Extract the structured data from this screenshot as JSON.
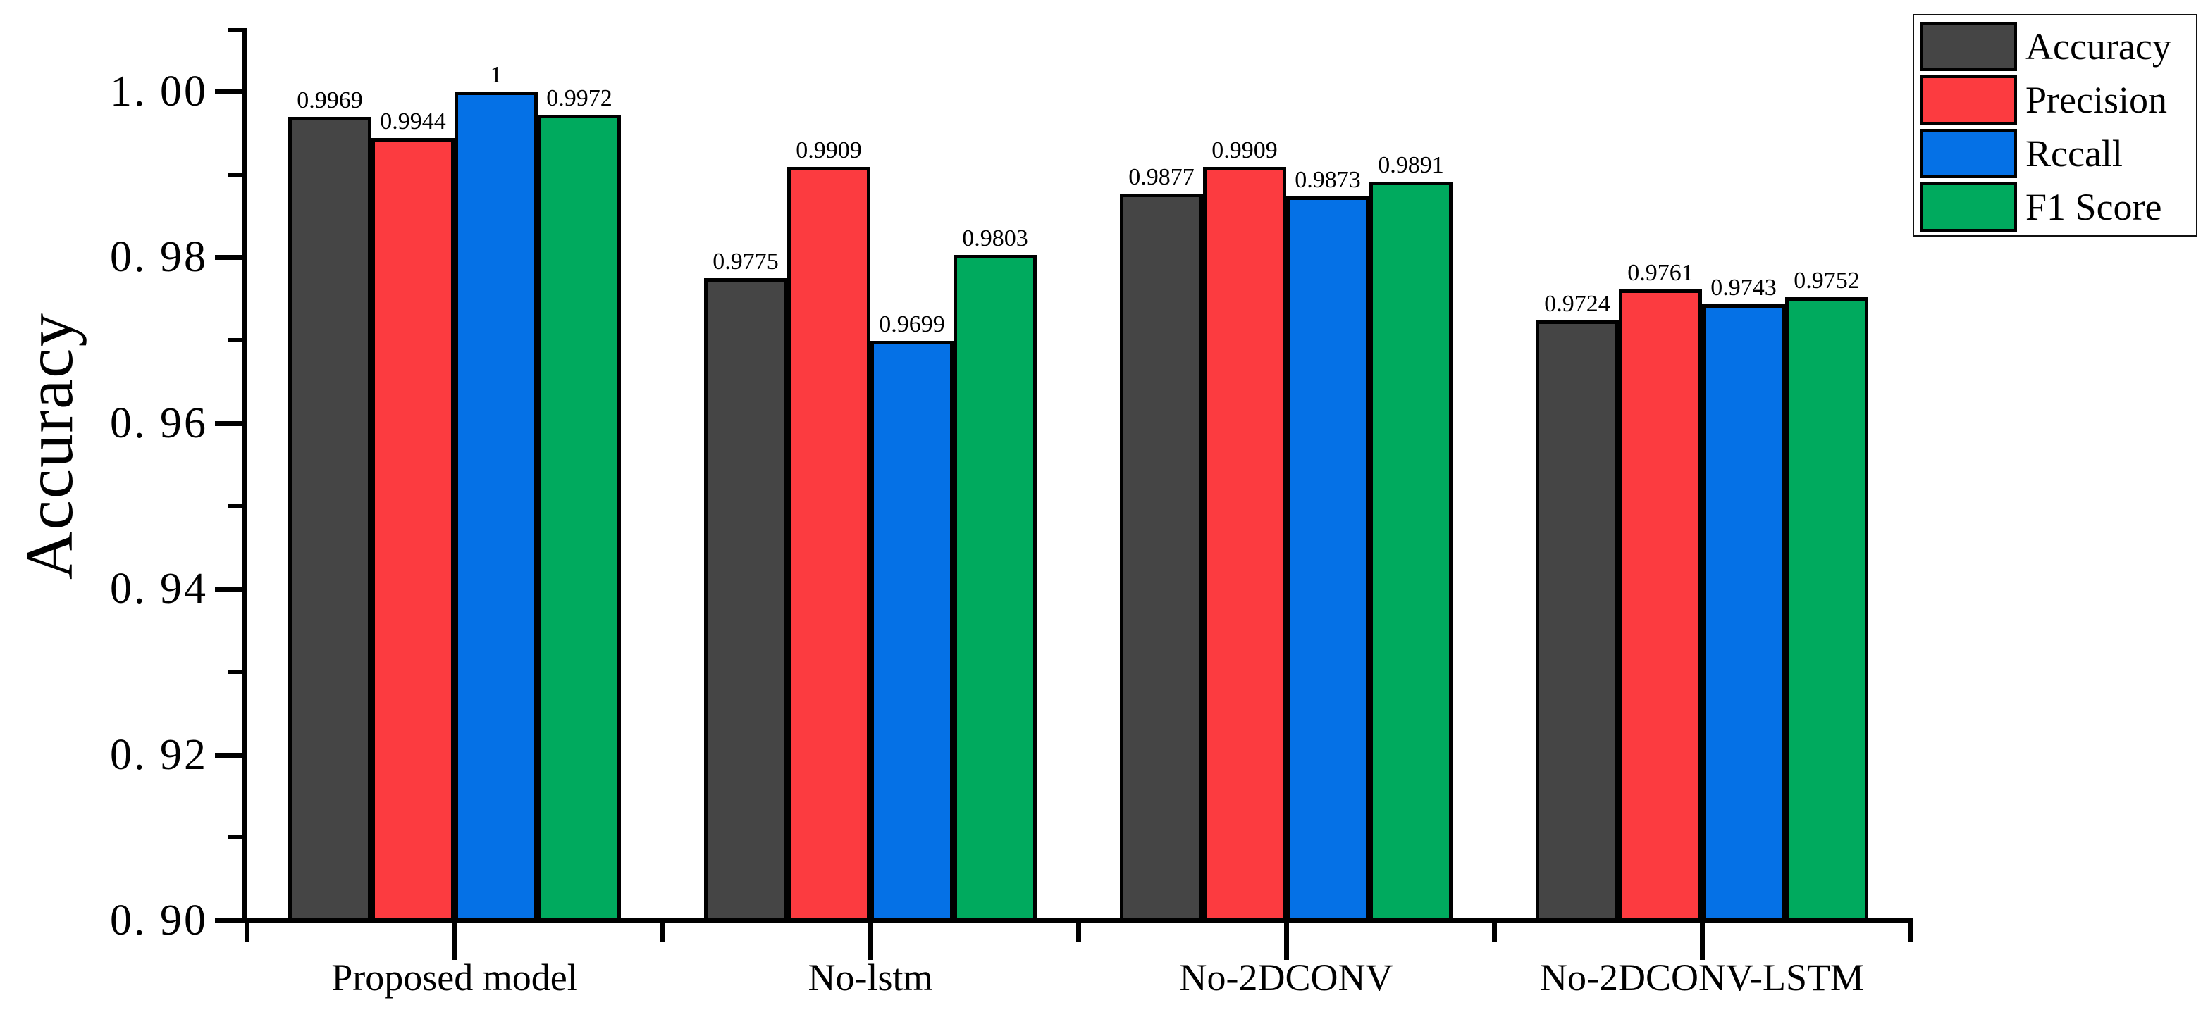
{
  "chart_data": {
    "type": "bar",
    "title": "",
    "xlabel": "",
    "ylabel": "Accuracy",
    "categories": [
      "Proposed model",
      "No-lstm",
      "No-2DCONV",
      "No-2DCONV-LSTM"
    ],
    "series": [
      {
        "name": "Accuracy",
        "color": "#454545",
        "values": [
          0.9969,
          0.9775,
          0.9877,
          0.9724
        ],
        "value_labels": [
          "0.9969",
          "0.9775",
          "0.9877",
          "0.9724"
        ]
      },
      {
        "name": "Precision",
        "color": "#fc3b40",
        "values": [
          0.9944,
          0.9909,
          0.9909,
          0.9761
        ],
        "value_labels": [
          "0.9944",
          "0.9909",
          "0.9909",
          "0.9761"
        ]
      },
      {
        "name": "Rccall",
        "color": "#0571e6",
        "values": [
          1.0,
          0.9699,
          0.9873,
          0.9743
        ],
        "value_labels": [
          "1",
          "0.9699",
          "0.9873",
          "0.9743"
        ]
      },
      {
        "name": "F1 Score",
        "color": "#00aa5e",
        "values": [
          0.9972,
          0.9803,
          0.9891,
          0.9752
        ],
        "value_labels": [
          "0.9972",
          "0.9803",
          "0.9891",
          "0.9752"
        ]
      }
    ],
    "ylim": [
      0.9,
      1.008
    ],
    "yticks_major": [
      0.9,
      0.92,
      0.94,
      0.96,
      0.98,
      1.0
    ],
    "ytick_labels": [
      "0. 90",
      "0. 92",
      "0. 94",
      "0. 96",
      "0. 98",
      "1. 00"
    ],
    "yticks_minor": [
      0.91,
      0.93,
      0.95,
      0.97,
      0.99
    ],
    "grid": false,
    "legend_position": "upper right",
    "bar_edge_color": "#000000",
    "background_color": "#ffffff"
  },
  "legend": {
    "items": [
      {
        "label": "Accuracy",
        "color": "#454545"
      },
      {
        "label": "Precision",
        "color": "#fc3b40"
      },
      {
        "label": "Rccall",
        "color": "#0571e6"
      },
      {
        "label": "F1 Score",
        "color": "#00aa5e"
      }
    ]
  }
}
